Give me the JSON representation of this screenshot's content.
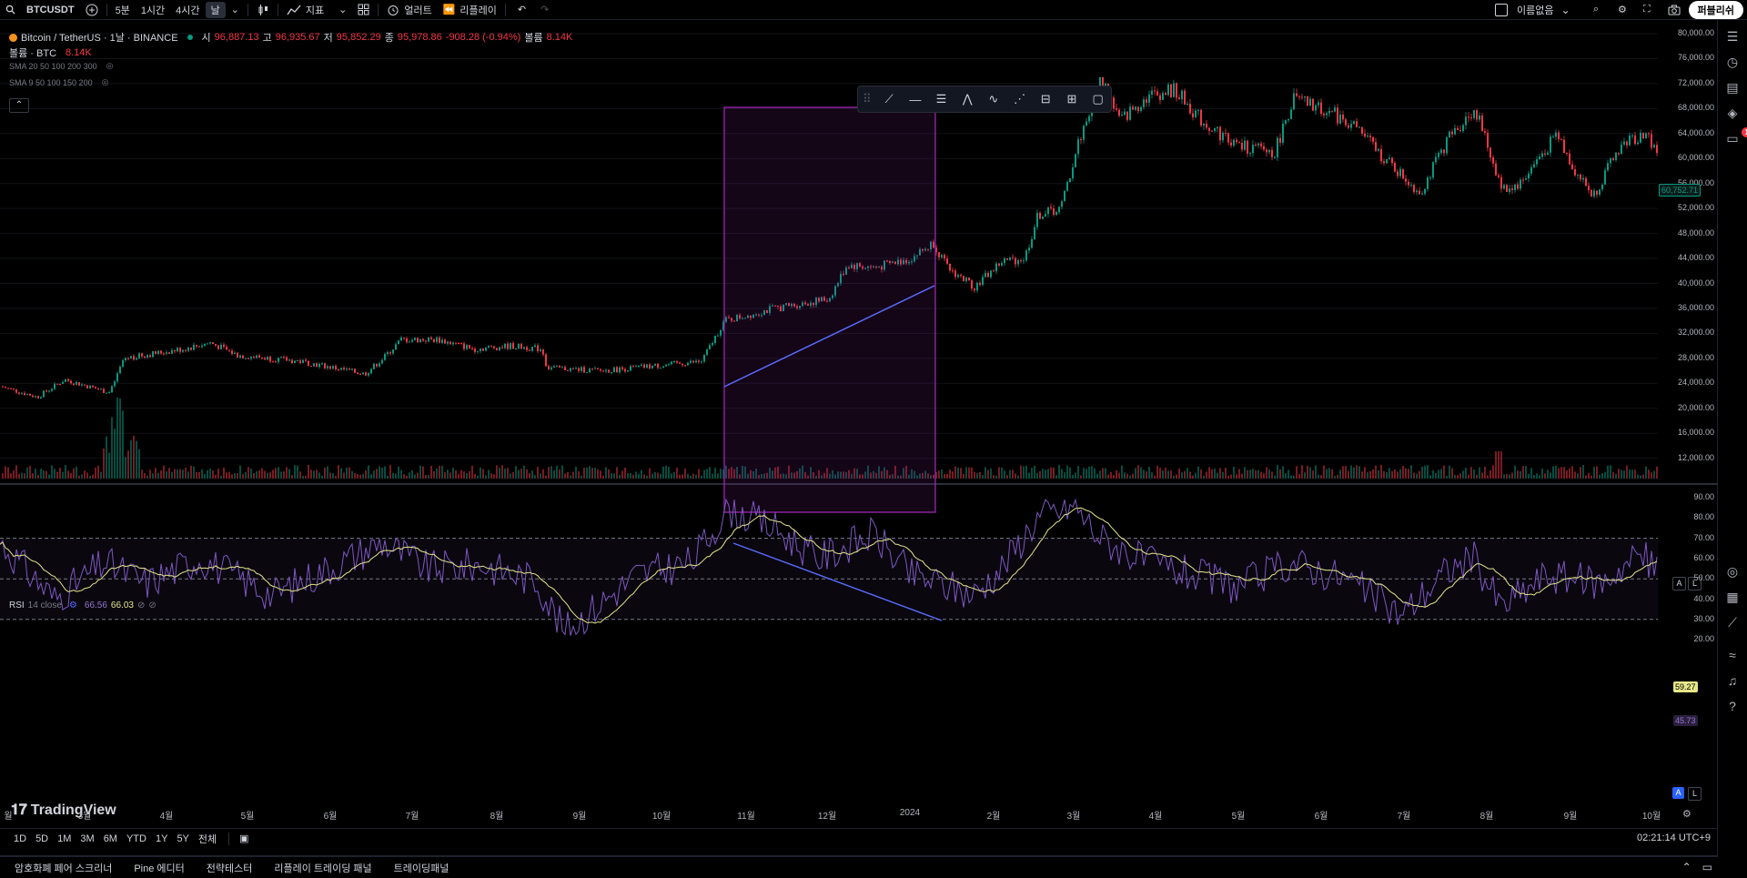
{
  "toolbar": {
    "symbol": "BTCUSDT",
    "intervals": [
      "5분",
      "1시간",
      "4시간",
      "날"
    ],
    "indicators_label": "지표",
    "alert_label": "얼러트",
    "replay_label": "리플레이",
    "layout_name": "이름없음",
    "publish_label": "퍼블리쉬"
  },
  "legend": {
    "title": "Bitcoin / TetherUS · 1날 · BINANCE",
    "open_label": "시",
    "open": "96,887.13",
    "high_label": "고",
    "high": "96,935.67",
    "low_label": "저",
    "low": "95,852.29",
    "close_label": "종",
    "close": "95,978.86",
    "change": "-908.28 (-0.94%)",
    "vol_label": "볼륨",
    "vol": "8.14K",
    "volume_line_label": "볼륨 · BTC",
    "volume_line_value": "8.14K",
    "sma1": "SMA 20 50 100 200 300",
    "sma2": "SMA 9 50 100 150 200"
  },
  "rsi_legend": {
    "label": "RSI",
    "params": "14 close",
    "value1": "66.56",
    "value2": "66.03"
  },
  "price_axis": [
    "80,000.00",
    "76,000.00",
    "72,000.00",
    "68,000.00",
    "64,000.00",
    "60,000.00",
    "56,000.00",
    "52,000.00",
    "48,000.00",
    "44,000.00",
    "40,000.00",
    "36,000.00",
    "32,000.00",
    "28,000.00",
    "24,000.00",
    "20,000.00",
    "16,000.00",
    "12,000.00"
  ],
  "current_price_tag": "60,752.71",
  "rsi_axis": [
    "90.00",
    "80.00",
    "70.00",
    "60.00",
    "50.00",
    "40.00",
    "30.00",
    "20.00"
  ],
  "rsi_tag1": "59.27",
  "rsi_tag2": "45.73",
  "time_axis": [
    "월",
    "3월",
    "4월",
    "5월",
    "6월",
    "7월",
    "8월",
    "9월",
    "10월",
    "11월",
    "12월",
    "2024",
    "2월",
    "3월",
    "4월",
    "5월",
    "6월",
    "7월",
    "8월",
    "9월",
    "10월"
  ],
  "periods": [
    "1D",
    "5D",
    "1M",
    "3M",
    "6M",
    "YTD",
    "1Y",
    "5Y",
    "전체"
  ],
  "clock": "02:21:14 UTC+9",
  "bottom_tabs": [
    "암호화폐 페어 스크리너",
    "Pine 에디터",
    "전략테스터",
    "리플레이 트레이딩 패널",
    "트레이딩패널"
  ],
  "watermark": "TradingView",
  "scale_buttons": [
    "A",
    "L"
  ],
  "notification_count": "1",
  "colors": {
    "up": "#089981",
    "down": "#f23645",
    "rsi": "#7e57c2",
    "rsi_ma": "#e6e68a",
    "rect": "#9c27b0",
    "trendline": "#5b6cff"
  }
}
